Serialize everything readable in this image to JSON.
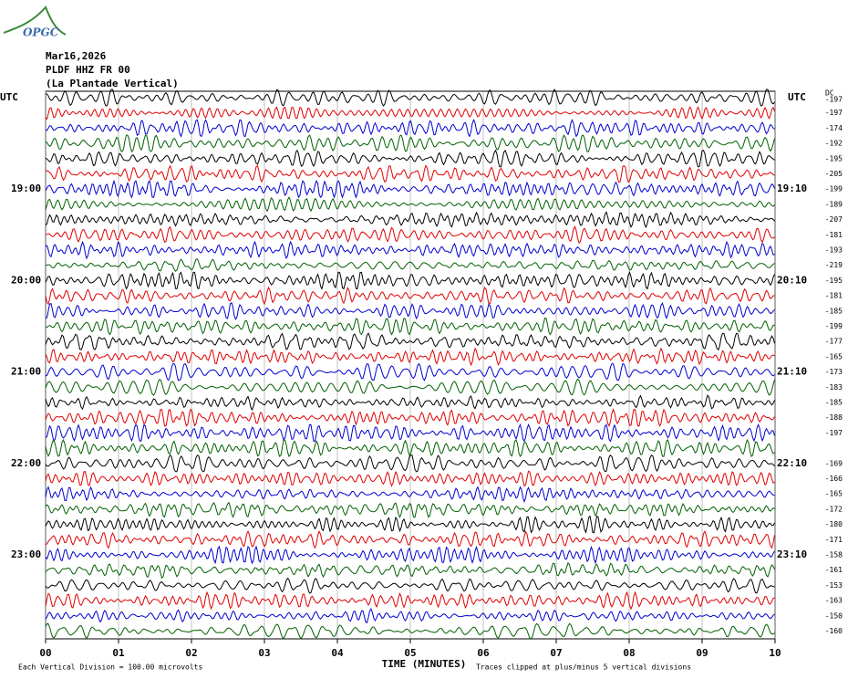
{
  "logo": "OPGC",
  "chart_data": {
    "type": "helicorder",
    "date": "Mar16,2026",
    "station": "PLDF HHZ FR 00",
    "station_name": "(La Plantade Vertical)",
    "left_header": "UTC",
    "right_header": "UTC",
    "dc_header": "DC",
    "left_time_labels": [
      "19:00",
      "20:00",
      "21:00",
      "22:00",
      "23:00"
    ],
    "right_time_labels": [
      "19:10",
      "20:10",
      "21:10",
      "22:10",
      "23:10"
    ],
    "dc_offsets": [
      -197,
      -197,
      -174,
      -192,
      -195,
      -205,
      -199,
      -189,
      -207,
      -181,
      -193,
      -219,
      -195,
      -181,
      -185,
      -199,
      -177,
      -165,
      -173,
      -183,
      -185,
      -188,
      -197,
      -169,
      -166,
      -165,
      -172,
      -180,
      -171,
      -158,
      -161,
      -153,
      -163,
      -150,
      -160
    ],
    "trace_colors": [
      "#000000",
      "#e00000",
      "#0000d0",
      "#006000"
    ],
    "xlabel": "TIME (MINUTES)",
    "xlim": [
      0,
      10
    ],
    "xticks": [
      {
        "value": 0,
        "label": "00"
      },
      {
        "value": 1,
        "label": "01"
      },
      {
        "value": 2,
        "label": "02"
      },
      {
        "value": 3,
        "label": "03"
      },
      {
        "value": 4,
        "label": "04"
      },
      {
        "value": 5,
        "label": "05"
      },
      {
        "value": 6,
        "label": "06"
      },
      {
        "value": 7,
        "label": "07"
      },
      {
        "value": 8,
        "label": "08"
      },
      {
        "value": 9,
        "label": "09"
      },
      {
        "value": 10,
        "label": "10"
      }
    ],
    "scale_note": "Each Vertical Division =  100.00 microvolts",
    "clip_note": "Traces clipped at plus/minus 5 vertical divisions"
  }
}
